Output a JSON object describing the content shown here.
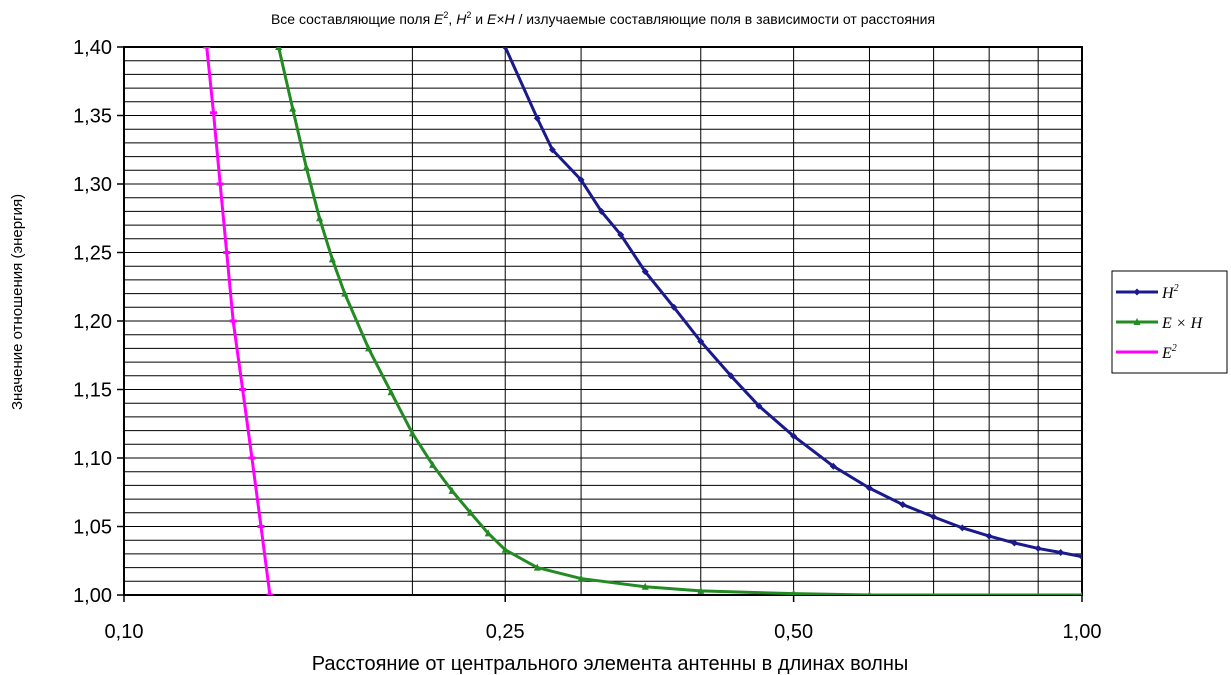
{
  "chart_data": {
    "type": "line",
    "title": {
      "prefix": "Все составляющие поля ",
      "t1": "E",
      "t1_sup": "2",
      "sep1": ", ",
      "t2": "H",
      "t2_sup": "2",
      "sep2": " и ",
      "t3": "E×H",
      "suffix": " / излучаемые составляющие поля в зависимости от расстояния"
    },
    "xlabel": "Расстояние от центрального элемента антенны в длинах волны",
    "ylabel": "Значение отношения (энергия)",
    "x_scale": "log",
    "xlim": [
      0.1,
      1.0
    ],
    "ylim": [
      1.0,
      1.4
    ],
    "x_ticks": [
      {
        "value": 0.1,
        "label": "0,10"
      },
      {
        "value": 0.25,
        "label": "0,25"
      },
      {
        "value": 0.5,
        "label": "0,50"
      },
      {
        "value": 1.0,
        "label": "1,00"
      }
    ],
    "y_ticks": [
      {
        "value": 1.0,
        "label": "1,00"
      },
      {
        "value": 1.05,
        "label": "1,05"
      },
      {
        "value": 1.1,
        "label": "1,10"
      },
      {
        "value": 1.15,
        "label": "1,15"
      },
      {
        "value": 1.2,
        "label": "1,20"
      },
      {
        "value": 1.25,
        "label": "1,25"
      },
      {
        "value": 1.3,
        "label": "1,30"
      },
      {
        "value": 1.35,
        "label": "1,35"
      },
      {
        "value": 1.4,
        "label": "1,40"
      }
    ],
    "x_grid": [
      0.1,
      0.2,
      0.25,
      0.3,
      0.4,
      0.5,
      0.6,
      0.7,
      0.8,
      0.9,
      1.0
    ],
    "y_grid_step": 0.01,
    "legend_position": "right",
    "series": [
      {
        "name": "H",
        "sup": "2",
        "color": "#1a1a8c",
        "marker": "diamond",
        "points": [
          [
            0.25,
            1.4
          ],
          [
            0.27,
            1.348
          ],
          [
            0.28,
            1.325
          ],
          [
            0.3,
            1.303
          ],
          [
            0.315,
            1.28
          ],
          [
            0.33,
            1.263
          ],
          [
            0.35,
            1.236
          ],
          [
            0.375,
            1.21
          ],
          [
            0.4,
            1.185
          ],
          [
            0.43,
            1.16
          ],
          [
            0.46,
            1.138
          ],
          [
            0.5,
            1.116
          ],
          [
            0.55,
            1.094
          ],
          [
            0.6,
            1.078
          ],
          [
            0.65,
            1.066
          ],
          [
            0.7,
            1.057
          ],
          [
            0.75,
            1.049
          ],
          [
            0.8,
            1.043
          ],
          [
            0.85,
            1.038
          ],
          [
            0.9,
            1.034
          ],
          [
            0.95,
            1.031
          ],
          [
            1.0,
            1.028
          ]
        ]
      },
      {
        "name": "E × H",
        "color": "#238b23",
        "marker": "triangle",
        "points": [
          [
            0.145,
            1.4
          ],
          [
            0.15,
            1.355
          ],
          [
            0.155,
            1.312
          ],
          [
            0.16,
            1.275
          ],
          [
            0.165,
            1.245
          ],
          [
            0.17,
            1.22
          ],
          [
            0.18,
            1.18
          ],
          [
            0.19,
            1.148
          ],
          [
            0.2,
            1.118
          ],
          [
            0.21,
            1.095
          ],
          [
            0.22,
            1.076
          ],
          [
            0.23,
            1.06
          ],
          [
            0.24,
            1.045
          ],
          [
            0.25,
            1.033
          ],
          [
            0.27,
            1.02
          ],
          [
            0.3,
            1.012
          ],
          [
            0.35,
            1.006
          ],
          [
            0.4,
            1.003
          ],
          [
            0.5,
            1.001
          ],
          [
            0.6,
            1.0
          ],
          [
            1.0,
            1.0
          ]
        ]
      },
      {
        "name": "E",
        "sup": "2",
        "color": "#ff00ff",
        "marker": "dash",
        "points": [
          [
            0.122,
            1.4
          ],
          [
            0.124,
            1.352
          ],
          [
            0.126,
            1.3
          ],
          [
            0.128,
            1.25
          ],
          [
            0.13,
            1.2
          ],
          [
            0.133,
            1.15
          ],
          [
            0.136,
            1.1
          ],
          [
            0.139,
            1.05
          ],
          [
            0.142,
            1.0
          ]
        ]
      }
    ]
  }
}
